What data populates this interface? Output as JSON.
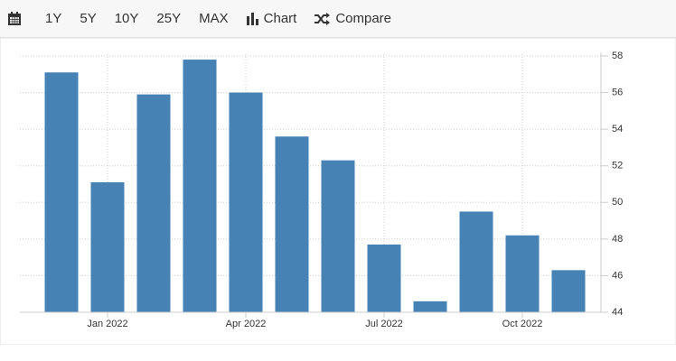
{
  "toolbar": {
    "ranges": [
      "1Y",
      "5Y",
      "10Y",
      "25Y",
      "MAX"
    ],
    "chart": "Chart",
    "compare": "Compare"
  },
  "chart_data": {
    "type": "bar",
    "categories": [
      null,
      "Jan 2022",
      null,
      null,
      "Apr 2022",
      null,
      null,
      "Jul 2022",
      null,
      null,
      "Oct 2022",
      null
    ],
    "values": [
      57.1,
      51.1,
      55.9,
      57.8,
      56.0,
      53.6,
      52.3,
      47.7,
      44.6,
      49.5,
      48.2,
      46.3
    ],
    "color": "#4682b4",
    "ylim": [
      44,
      58
    ],
    "yticks": [
      44,
      46,
      48,
      50,
      52,
      54,
      56,
      58
    ],
    "grid": true
  }
}
